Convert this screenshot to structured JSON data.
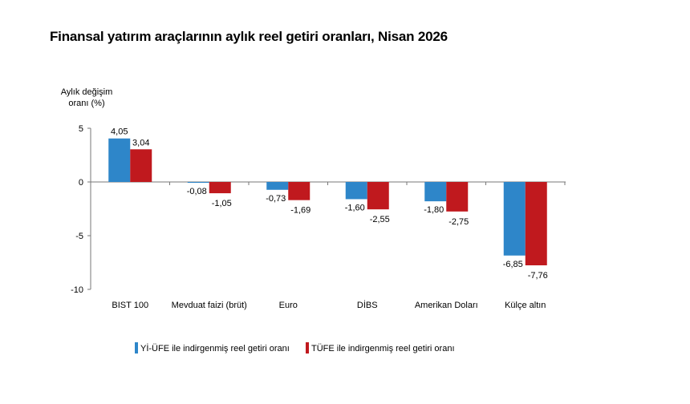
{
  "chart_data": {
    "type": "bar",
    "title": "Finansal yatırım araçlarının aylık reel getiri oranları, Nisan 2026",
    "ylabel_lines": [
      "Aylık değişim",
      "oranı (%)"
    ],
    "xlabel": "",
    "categories": [
      "BIST 100",
      "Mevduat faizi (brüt)",
      "Euro",
      "DİBS",
      "Amerikan Doları",
      "Külçe altın"
    ],
    "series": [
      {
        "name": "Yİ-ÜFE ile indirgenmiş reel getiri oranı",
        "color": "#2E86C9",
        "values": [
          4.05,
          -0.08,
          -0.73,
          -1.6,
          -1.8,
          -6.85
        ],
        "labels": [
          "4,05",
          "-0,08",
          "-0,73",
          "-1,60",
          "-1,80",
          "-6,85"
        ]
      },
      {
        "name": "TÜFE ile indirgenmiş reel getiri oranı",
        "color": "#C0191E",
        "values": [
          3.04,
          -1.05,
          -1.69,
          -2.55,
          -2.75,
          -7.76
        ],
        "labels": [
          "3,04",
          "-1,05",
          "-1,69",
          "-2,55",
          "-2,75",
          "-7,76"
        ]
      }
    ],
    "yticks": [
      5,
      0,
      -5,
      -10
    ],
    "ytick_labels": [
      "5",
      "0",
      "-5",
      "-10"
    ],
    "ylim": [
      -10,
      5
    ],
    "grid": false,
    "legend_position": "bottom"
  }
}
